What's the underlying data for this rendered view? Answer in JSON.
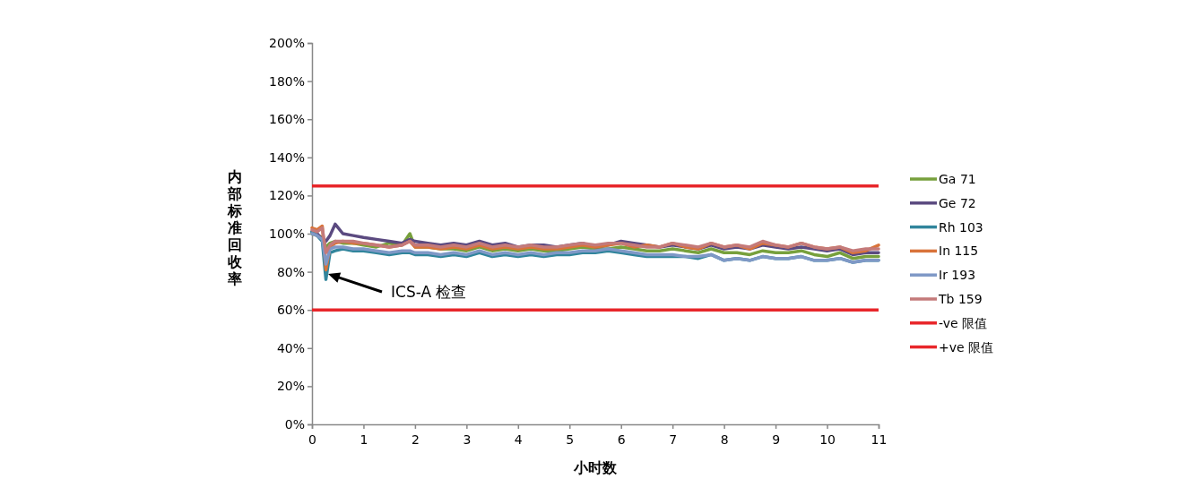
{
  "chart_data": {
    "type": "line",
    "xlabel": "小时数",
    "ylabel": "内部标准回收率",
    "x": [
      0,
      0.1,
      0.2,
      0.27,
      0.35,
      0.45,
      0.6,
      0.8,
      1,
      1.25,
      1.5,
      1.75,
      1.9,
      2,
      2.25,
      2.5,
      2.75,
      3,
      3.25,
      3.5,
      3.75,
      4,
      4.25,
      4.5,
      4.75,
      5,
      5.25,
      5.5,
      5.75,
      6,
      6.25,
      6.5,
      6.75,
      7,
      7.25,
      7.5,
      7.75,
      8,
      8.25,
      8.5,
      8.75,
      9,
      9.25,
      9.5,
      9.75,
      10,
      10.25,
      10.5,
      10.75,
      11
    ],
    "series": [
      {
        "name": "Ga 71",
        "color": "#77a03c",
        "values": [
          100,
          99,
          98,
          93,
          95,
          96,
          95,
          95,
          94,
          93,
          95,
          94,
          100,
          93,
          93,
          92,
          92,
          91,
          93,
          91,
          92,
          91,
          92,
          91,
          91,
          92,
          93,
          92,
          92,
          93,
          92,
          91,
          91,
          92,
          91,
          90,
          92,
          90,
          90,
          89,
          91,
          90,
          90,
          91,
          89,
          88,
          90,
          87,
          88,
          88
        ]
      },
      {
        "name": "Ge 72",
        "color": "#5b4a80",
        "values": [
          101,
          100,
          97,
          96,
          99,
          105,
          100,
          99,
          98,
          97,
          96,
          95,
          97,
          96,
          95,
          94,
          95,
          94,
          96,
          94,
          95,
          93,
          94,
          94,
          93,
          94,
          95,
          93,
          94,
          96,
          95,
          94,
          93,
          94,
          93,
          92,
          94,
          92,
          93,
          92,
          94,
          93,
          92,
          93,
          92,
          91,
          92,
          89,
          90,
          90
        ]
      },
      {
        "name": "Rh 103",
        "color": "#31859c",
        "values": [
          101,
          99,
          96,
          76,
          90,
          91,
          92,
          91,
          91,
          90,
          89,
          90,
          90,
          89,
          89,
          88,
          89,
          88,
          90,
          88,
          89,
          88,
          89,
          88,
          89,
          89,
          90,
          90,
          91,
          90,
          89,
          88,
          88,
          88,
          88,
          87,
          89,
          86,
          87,
          86,
          88,
          87,
          87,
          88,
          86,
          86,
          87,
          85,
          86,
          86
        ]
      },
      {
        "name": "In 115",
        "color": "#d9733a",
        "values": [
          103,
          102,
          104,
          81,
          93,
          95,
          96,
          95,
          95,
          94,
          93,
          94,
          96,
          93,
          93,
          92,
          93,
          92,
          94,
          92,
          93,
          92,
          93,
          92,
          92,
          93,
          94,
          93,
          94,
          95,
          93,
          94,
          93,
          95,
          93,
          92,
          95,
          93,
          94,
          92,
          95,
          94,
          93,
          95,
          93,
          92,
          93,
          90,
          91,
          94
        ]
      },
      {
        "name": "Ir 193",
        "color": "#7f98c6",
        "values": [
          100,
          99,
          97,
          84,
          92,
          93,
          93,
          92,
          92,
          91,
          90,
          91,
          91,
          90,
          90,
          89,
          90,
          89,
          91,
          89,
          90,
          89,
          90,
          89,
          90,
          90,
          91,
          91,
          92,
          91,
          90,
          89,
          89,
          89,
          88,
          88,
          89,
          86,
          87,
          86,
          88,
          87,
          87,
          88,
          86,
          86,
          87,
          85,
          86,
          86
        ]
      },
      {
        "name": "Tb 159",
        "color": "#c47a7a",
        "values": [
          102,
          101,
          103,
          90,
          94,
          96,
          96,
          96,
          95,
          94,
          93,
          94,
          96,
          94,
          94,
          93,
          94,
          93,
          95,
          93,
          94,
          93,
          94,
          93,
          93,
          94,
          95,
          94,
          95,
          95,
          94,
          93,
          93,
          95,
          94,
          93,
          95,
          93,
          94,
          93,
          96,
          94,
          93,
          95,
          93,
          92,
          93,
          91,
          92,
          92
        ]
      }
    ],
    "ref_lines": [
      {
        "axis": "y",
        "value": 60,
        "label": "-ve 限值",
        "color": "#e8262a"
      },
      {
        "axis": "y",
        "value": 125,
        "label": "+ve 限值",
        "color": "#e8262a"
      }
    ],
    "annotations": [
      "ICS-A 检查"
    ],
    "xlim": [
      0,
      11
    ],
    "xticks": [
      0,
      1,
      2,
      3,
      4,
      5,
      6,
      7,
      8,
      9,
      10,
      11
    ],
    "ylim": [
      0,
      200
    ],
    "yticks": [
      {
        "value": 0,
        "label": "0%"
      },
      {
        "value": 20,
        "label": "20%"
      },
      {
        "value": 40,
        "label": "40%"
      },
      {
        "value": 60,
        "label": "60%"
      },
      {
        "value": 80,
        "label": "80%"
      },
      {
        "value": 100,
        "label": "100%"
      },
      {
        "value": 120,
        "label": "120%"
      },
      {
        "value": 140,
        "label": "140%"
      },
      {
        "value": 160,
        "label": "160%"
      },
      {
        "value": 180,
        "label": "180%"
      },
      {
        "value": 200,
        "label": "200%"
      }
    ],
    "grid": false,
    "legend": "right",
    "marker": "none",
    "line_style": "solid"
  }
}
